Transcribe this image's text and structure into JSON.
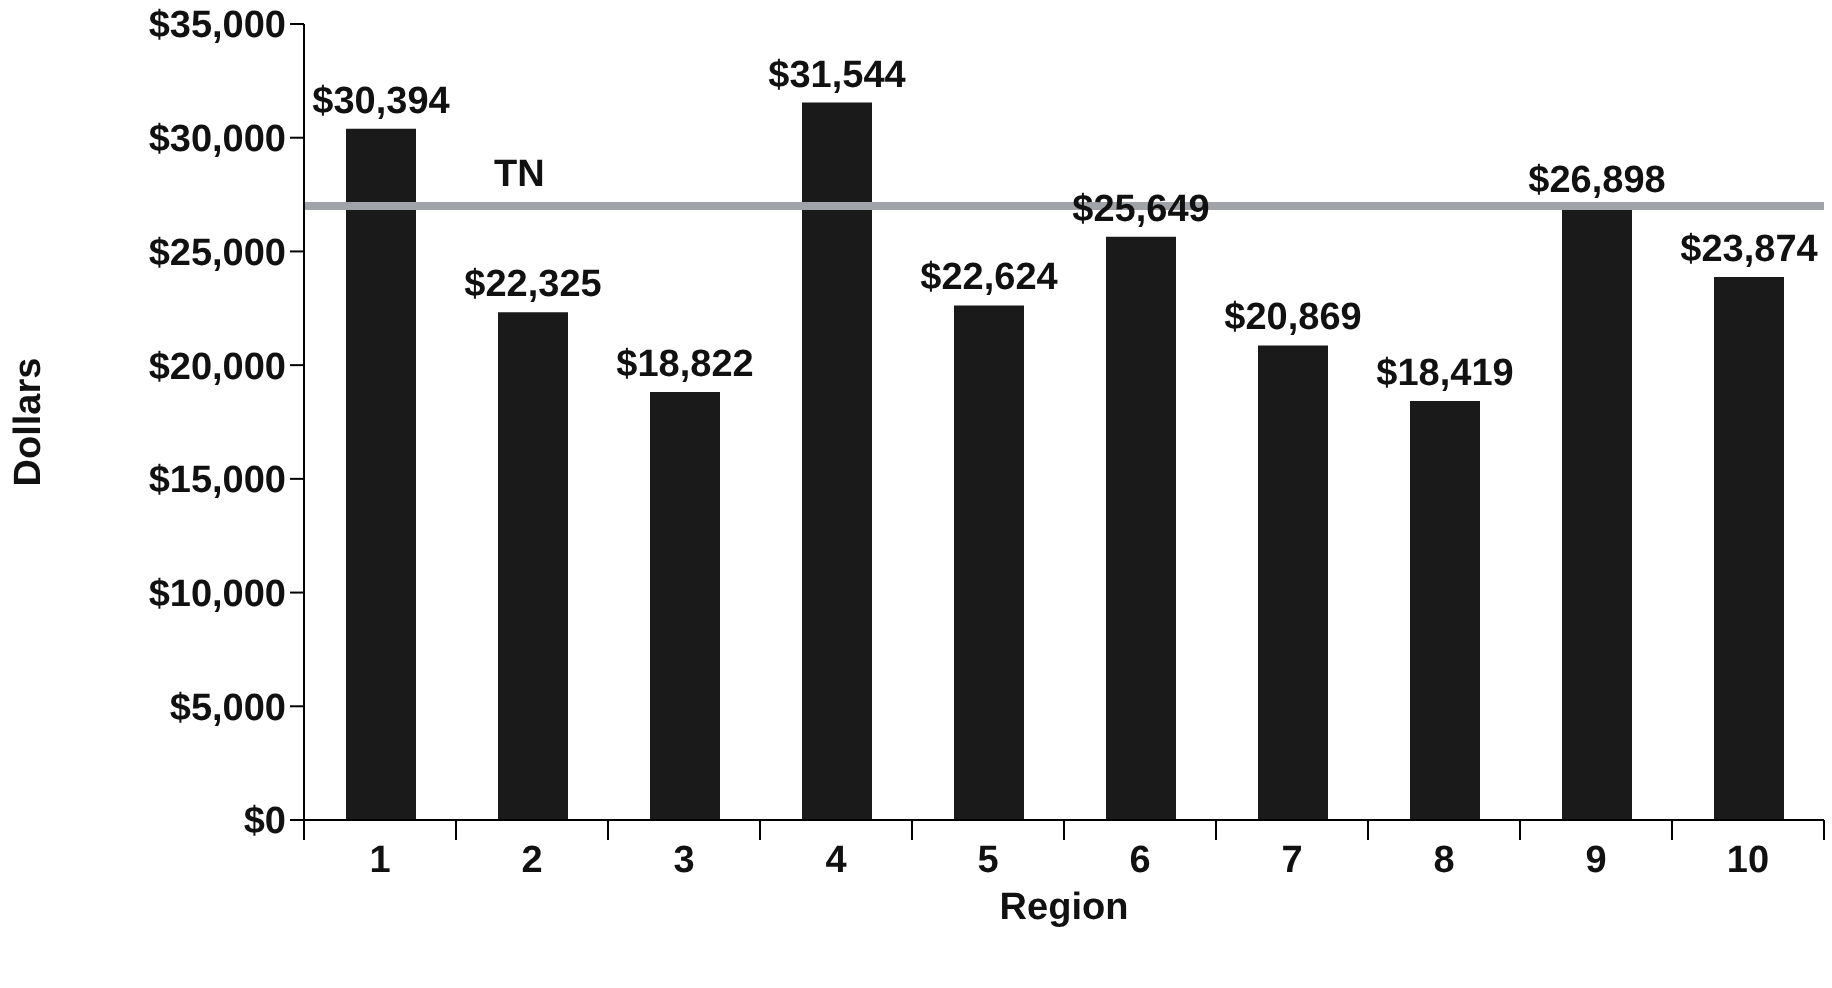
{
  "chart_data": {
    "type": "bar",
    "xlabel": "Region",
    "ylabel": "Dollars",
    "categories": [
      "1",
      "2",
      "3",
      "4",
      "5",
      "6",
      "7",
      "8",
      "9",
      "10"
    ],
    "values": [
      30394,
      22325,
      18822,
      31544,
      22624,
      25649,
      20869,
      18419,
      26898,
      23874
    ],
    "value_labels": [
      "$30,394",
      "$22,325",
      "$18,822",
      "$31,544",
      "$22,624",
      "$25,649",
      "$20,869",
      "$18,419",
      "$26,898",
      "$23,874"
    ],
    "color": "#1a1a1a",
    "ylim": [
      0,
      35000
    ],
    "yticks": [
      {
        "value": 0,
        "label": "$0"
      },
      {
        "value": 5000,
        "label": "$5,000"
      },
      {
        "value": 10000,
        "label": "$10,000"
      },
      {
        "value": 15000,
        "label": "$15,000"
      },
      {
        "value": 20000,
        "label": "$20,000"
      },
      {
        "value": 25000,
        "label": "$25,000"
      },
      {
        "value": 30000,
        "label": "$30,000"
      },
      {
        "value": 35000,
        "label": "$35,000"
      }
    ],
    "ref_lines": [
      {
        "axis": "y",
        "value": 27000,
        "label": "TN",
        "color": "#a0a4a8"
      }
    ],
    "grid": false
  }
}
